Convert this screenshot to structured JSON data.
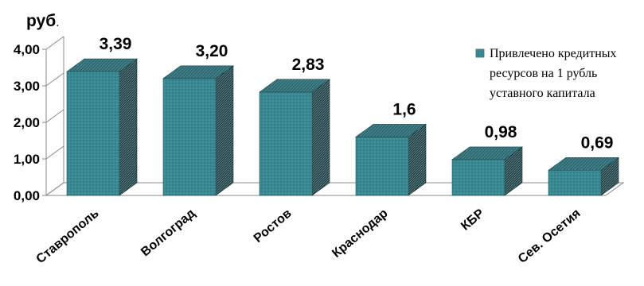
{
  "chart_data": {
    "type": "bar",
    "style": "3d",
    "unit_label": "руб",
    "unit_suffix": ".",
    "categories": [
      "Ставрополь",
      "Волгоград",
      "Ростов",
      "Краснодар",
      "КБР",
      "Сев. Осетия"
    ],
    "series": [
      {
        "name": "Привлечено кредитных ресурсов на 1 рубль уставного капитала",
        "legend_lines": [
          "Привлечено кредитных",
          "ресурсов на 1 рубль",
          "уставного капитала"
        ],
        "values": [
          3.39,
          3.2,
          2.83,
          1.6,
          0.98,
          0.69
        ],
        "value_labels": [
          "3,39",
          "3,20",
          "2,83",
          "1,6",
          "0,98",
          "0,69"
        ],
        "color": "#3a8a93"
      }
    ],
    "y_ticks": [
      {
        "value": 0,
        "label": "0,00"
      },
      {
        "value": 1,
        "label": "1,00"
      },
      {
        "value": 2,
        "label": "2,00"
      },
      {
        "value": 3,
        "label": "3,00"
      },
      {
        "value": 4,
        "label": "4,00"
      }
    ],
    "ylim": [
      0,
      4
    ],
    "legend_position": "top-right",
    "grid": false,
    "title": "",
    "xlabel": "",
    "ylabel": ""
  }
}
